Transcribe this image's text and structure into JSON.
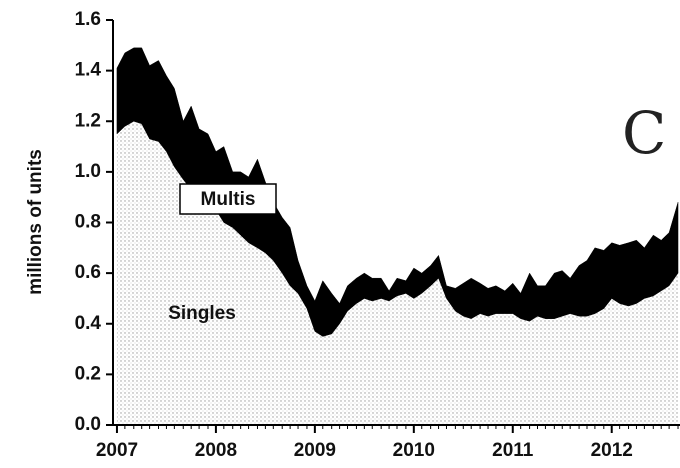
{
  "chart_data": {
    "type": "stacked_area",
    "ylabel": "millions of units",
    "annotation": "C",
    "x": [
      2007,
      2007.08,
      2007.17,
      2007.25,
      2007.33,
      2007.42,
      2007.5,
      2007.58,
      2007.67,
      2007.75,
      2007.83,
      2007.92,
      2008,
      2008.08,
      2008.17,
      2008.25,
      2008.33,
      2008.42,
      2008.5,
      2008.58,
      2008.67,
      2008.75,
      2008.83,
      2008.92,
      2009,
      2009.08,
      2009.17,
      2009.25,
      2009.33,
      2009.42,
      2009.5,
      2009.58,
      2009.67,
      2009.75,
      2009.83,
      2009.92,
      2010,
      2010.08,
      2010.17,
      2010.25,
      2010.33,
      2010.42,
      2010.5,
      2010.58,
      2010.67,
      2010.75,
      2010.83,
      2010.92,
      2011,
      2011.08,
      2011.17,
      2011.25,
      2011.33,
      2011.42,
      2011.5,
      2011.58,
      2011.67,
      2011.75,
      2011.83,
      2011.92,
      2012,
      2012.08,
      2012.17,
      2012.25,
      2012.33,
      2012.42,
      2012.5,
      2012.58,
      2012.67
    ],
    "series": [
      {
        "name": "Singles",
        "color": "#e8e8e8",
        "values": [
          1.15,
          1.18,
          1.2,
          1.19,
          1.13,
          1.12,
          1.08,
          1.02,
          0.97,
          0.93,
          0.9,
          0.88,
          0.85,
          0.8,
          0.78,
          0.75,
          0.72,
          0.7,
          0.68,
          0.65,
          0.6,
          0.55,
          0.52,
          0.46,
          0.37,
          0.35,
          0.36,
          0.4,
          0.45,
          0.48,
          0.5,
          0.49,
          0.5,
          0.49,
          0.51,
          0.52,
          0.5,
          0.52,
          0.55,
          0.58,
          0.5,
          0.45,
          0.43,
          0.42,
          0.44,
          0.43,
          0.44,
          0.44,
          0.44,
          0.42,
          0.41,
          0.43,
          0.42,
          0.42,
          0.43,
          0.44,
          0.43,
          0.43,
          0.44,
          0.46,
          0.5,
          0.48,
          0.47,
          0.48,
          0.5,
          0.51,
          0.53,
          0.55,
          0.6
        ]
      },
      {
        "name": "Multis",
        "color": "#000000",
        "values": [
          0.26,
          0.29,
          0.29,
          0.3,
          0.29,
          0.32,
          0.3,
          0.31,
          0.23,
          0.33,
          0.27,
          0.27,
          0.23,
          0.3,
          0.22,
          0.25,
          0.26,
          0.35,
          0.28,
          0.23,
          0.22,
          0.23,
          0.13,
          0.09,
          0.12,
          0.22,
          0.16,
          0.08,
          0.1,
          0.1,
          0.1,
          0.09,
          0.08,
          0.04,
          0.07,
          0.05,
          0.12,
          0.08,
          0.08,
          0.09,
          0.05,
          0.09,
          0.13,
          0.16,
          0.12,
          0.11,
          0.11,
          0.09,
          0.12,
          0.1,
          0.19,
          0.12,
          0.13,
          0.18,
          0.18,
          0.14,
          0.2,
          0.22,
          0.26,
          0.23,
          0.22,
          0.23,
          0.25,
          0.25,
          0.2,
          0.24,
          0.2,
          0.21,
          0.28
        ]
      }
    ],
    "xlim": [
      2006.96,
      2012.69
    ],
    "xticks": [
      2007,
      2008,
      2009,
      2010,
      2011,
      2012
    ],
    "ylim": [
      0,
      1.6
    ],
    "yticks": [
      {
        "value": 0,
        "label": "0.0"
      },
      0.2,
      0.4,
      0.6,
      0.8,
      {
        "value": 1,
        "label": "1.0"
      },
      1.2,
      1.4,
      1.6
    ]
  }
}
